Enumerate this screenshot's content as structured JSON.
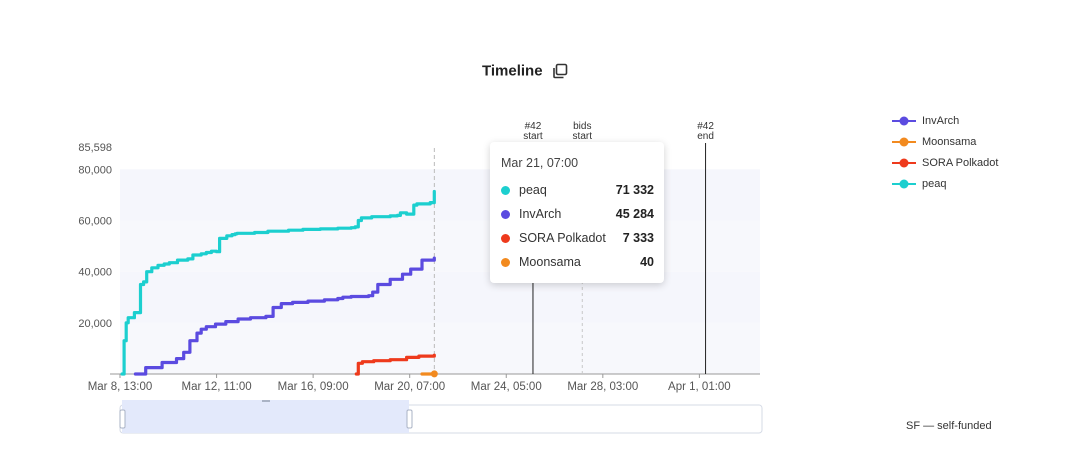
{
  "title": "Timeline",
  "colors": {
    "peaq": "#1ccfcf",
    "InvArch": "#5b4be0",
    "SORA Polkadot": "#ee3a1c",
    "Moonsama": "#f28a1f",
    "band": "#f5f6fc",
    "axis": "#999999",
    "slider_fill": "#e3e9fb"
  },
  "legend": [
    {
      "name": "InvArch",
      "color": "#5b4be0"
    },
    {
      "name": "Moonsama",
      "color": "#f28a1f"
    },
    {
      "name": "SORA Polkadot",
      "color": "#ee3a1c"
    },
    {
      "name": "peaq",
      "color": "#1ccfcf"
    }
  ],
  "tooltip": {
    "date": "Mar 21, 07:00",
    "rows": [
      {
        "name": "peaq",
        "value": "71 332",
        "color": "#1ccfcf"
      },
      {
        "name": "InvArch",
        "value": "45 284",
        "color": "#5b4be0"
      },
      {
        "name": "SORA Polkadot",
        "value": "7 333",
        "color": "#ee3a1c"
      },
      {
        "name": "Moonsama",
        "value": "40",
        "color": "#f28a1f"
      }
    ]
  },
  "footnote": "SF — self-funded",
  "chart_data": {
    "type": "line",
    "title": "Timeline",
    "x_ticks": [
      "Mar 8, 13:00",
      "Mar 12, 11:00",
      "Mar 16, 09:00",
      "Mar 20, 07:00",
      "Mar 24, 05:00",
      "Mar 28, 03:00",
      "Apr 1, 01:00"
    ],
    "y_ticks": [
      "20,000",
      "40,000",
      "60,000",
      "80,000"
    ],
    "y_tick_values": [
      20000,
      40000,
      60000,
      80000
    ],
    "y_max_label": "85,598",
    "ylim": [
      0,
      85598
    ],
    "xlim": [
      "2024-03-08T13:00",
      "2024-04-03T12:00"
    ],
    "grid": "alternating horizontal bands",
    "legend_position": "right",
    "crosshair": "2024-03-21T07:00",
    "markers": [
      {
        "label_lines": [
          "#42",
          "start"
        ],
        "x": "2024-03-25T07:00",
        "style": "solid"
      },
      {
        "label_lines": [
          "bids",
          "start"
        ],
        "x": "2024-03-27T07:00",
        "style": "dashed"
      },
      {
        "label_lines": [
          "#42",
          "end"
        ],
        "x": "2024-04-01T07:00",
        "style": "solid"
      }
    ],
    "series": [
      {
        "name": "peaq",
        "color": "#1ccfcf",
        "x": [
          "2024-03-08T15:00",
          "2024-03-08T17:00",
          "2024-03-08T19:00",
          "2024-03-08T21:00",
          "2024-03-09T03:00",
          "2024-03-09T09:00",
          "2024-03-09T12:00",
          "2024-03-09T15:00",
          "2024-03-09T20:00",
          "2024-03-10T02:00",
          "2024-03-10T08:00",
          "2024-03-10T13:00",
          "2024-03-10T21:00",
          "2024-03-11T07:00",
          "2024-03-11T12:00",
          "2024-03-11T20:00",
          "2024-03-12T01:00",
          "2024-03-12T06:00",
          "2024-03-12T11:00",
          "2024-03-12T14:00",
          "2024-03-12T21:00",
          "2024-03-13T02:00",
          "2024-03-13T05:00",
          "2024-03-13T07:00",
          "2024-03-14T00:00",
          "2024-03-14T13:00",
          "2024-03-15T09:00",
          "2024-03-15T23:00",
          "2024-03-16T16:00",
          "2024-03-17T09:00",
          "2024-03-17T22:00",
          "2024-03-18T02:00",
          "2024-03-18T05:00",
          "2024-03-18T08:00",
          "2024-03-18T18:00",
          "2024-03-19T12:00",
          "2024-03-19T19:00",
          "2024-03-19T22:00",
          "2024-03-20T04:00",
          "2024-03-20T11:00",
          "2024-03-20T14:00",
          "2024-03-21T03:00",
          "2024-03-21T07:00"
        ],
        "y": [
          0,
          13000,
          20000,
          22000,
          24000,
          35000,
          36000,
          40000,
          41500,
          42500,
          43000,
          43500,
          44500,
          45000,
          46500,
          47000,
          47500,
          48000,
          47800,
          53000,
          54000,
          54500,
          54800,
          55000,
          55300,
          55800,
          56200,
          56500,
          56700,
          57000,
          57200,
          57500,
          60000,
          61000,
          61500,
          61800,
          62000,
          63000,
          62500,
          66000,
          66500,
          67000,
          71332
        ]
      },
      {
        "name": "InvArch",
        "color": "#5b4be0",
        "x": [
          "2024-03-09T04:00",
          "2024-03-09T14:00",
          "2024-03-10T06:00",
          "2024-03-10T20:00",
          "2024-03-11T03:00",
          "2024-03-11T09:00",
          "2024-03-11T16:00",
          "2024-03-11T20:00",
          "2024-03-12T01:00",
          "2024-03-12T10:00",
          "2024-03-12T20:00",
          "2024-03-13T08:00",
          "2024-03-13T20:00",
          "2024-03-14T11:00",
          "2024-03-14T18:00",
          "2024-03-15T02:00",
          "2024-03-15T13:00",
          "2024-03-16T04:00",
          "2024-03-16T20:00",
          "2024-03-17T09:00",
          "2024-03-17T14:00",
          "2024-03-17T22:00",
          "2024-03-18T15:00",
          "2024-03-18T19:00",
          "2024-03-19T00:00",
          "2024-03-19T12:00",
          "2024-03-20T00:00",
          "2024-03-20T08:00",
          "2024-03-20T19:00",
          "2024-03-21T07:00"
        ],
        "y": [
          0,
          2500,
          4500,
          6000,
          8500,
          13000,
          16000,
          17500,
          18500,
          19500,
          20500,
          21500,
          22000,
          22500,
          26000,
          27500,
          28000,
          28500,
          29000,
          29500,
          30000,
          30300,
          30600,
          32000,
          35000,
          37000,
          39000,
          41000,
          44500,
          45284
        ]
      },
      {
        "name": "SORA Polkadot",
        "color": "#ee3a1c",
        "x": [
          "2024-03-18T03:00",
          "2024-03-18T05:00",
          "2024-03-18T09:00",
          "2024-03-18T20:00",
          "2024-03-19T12:00",
          "2024-03-20T04:00",
          "2024-03-20T16:00",
          "2024-03-21T07:00"
        ],
        "y": [
          0,
          4200,
          4800,
          5200,
          5600,
          6500,
          7000,
          7333
        ]
      },
      {
        "name": "Moonsama",
        "color": "#f28a1f",
        "x": [
          "2024-03-20T19:00",
          "2024-03-21T07:00"
        ],
        "y": [
          0,
          40
        ]
      }
    ]
  }
}
